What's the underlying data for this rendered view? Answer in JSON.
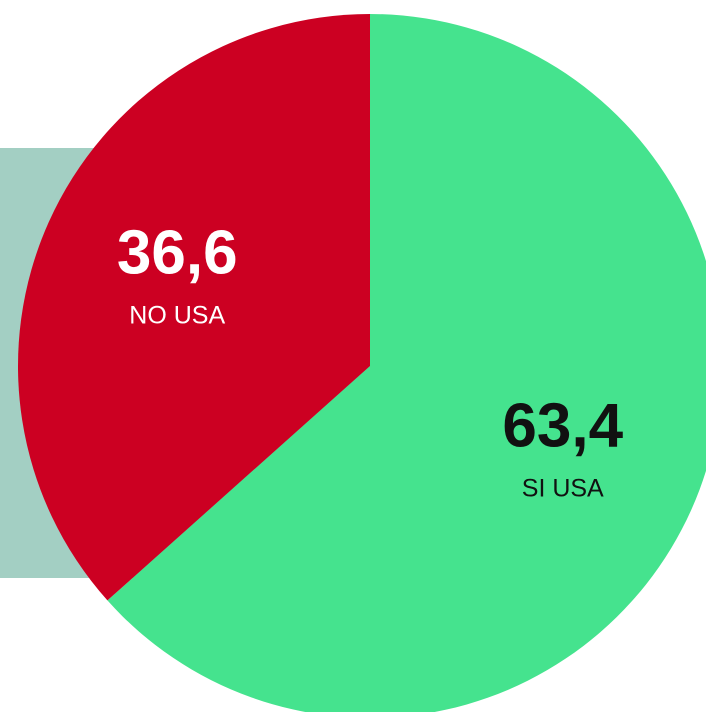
{
  "chart_data": {
    "type": "pie",
    "categories": [
      "SI USA",
      "NO USA"
    ],
    "values": [
      63.4,
      36.6
    ],
    "value_labels": [
      "63,4",
      "36,6"
    ],
    "colors": [
      "#45e38e",
      "#cc0022"
    ],
    "label_colors": [
      "#111111",
      "#ffffff"
    ]
  }
}
